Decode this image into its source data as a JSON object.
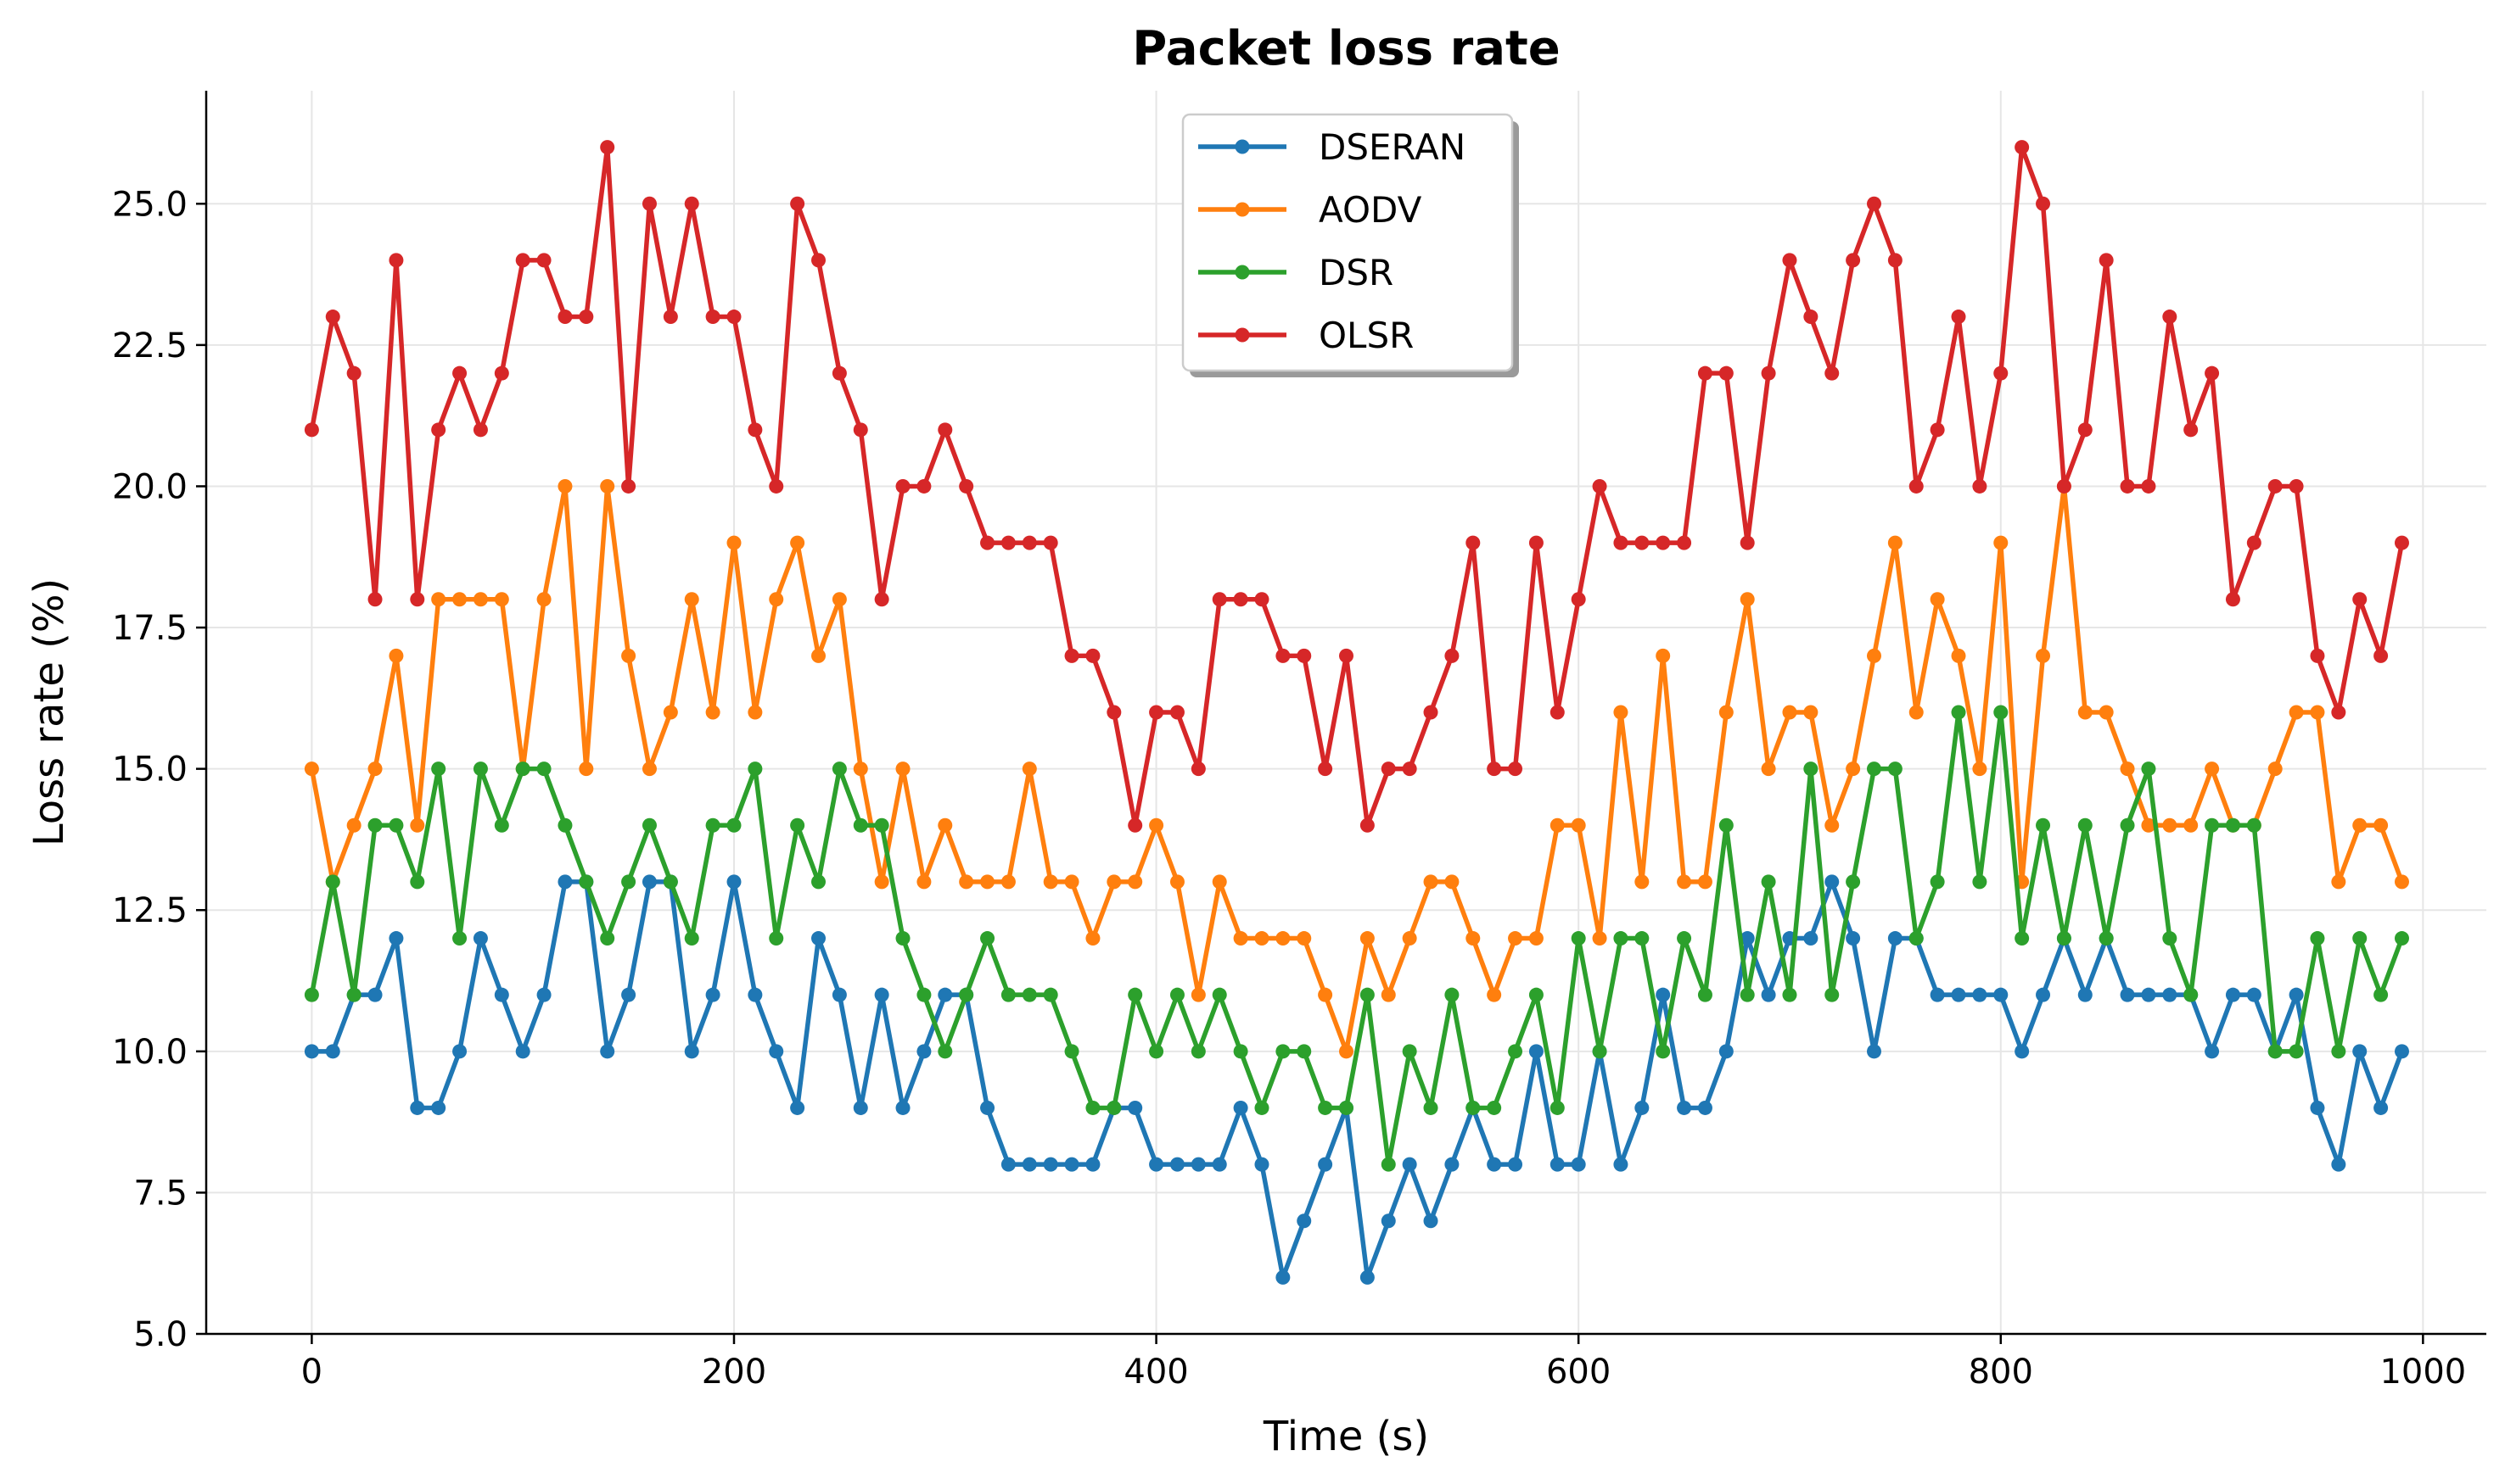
{
  "chart_data": {
    "type": "line",
    "title": "Packet loss rate",
    "xlabel": "Time (s)",
    "ylabel": "Loss rate (%)",
    "xlim": [
      -50,
      1030
    ],
    "ylim": [
      5.0,
      27.0
    ],
    "xticks": [
      0,
      200,
      400,
      600,
      800,
      1000
    ],
    "yticks": [
      5.0,
      7.5,
      10.0,
      12.5,
      15.0,
      17.5,
      20.0,
      22.5,
      25.0
    ],
    "xtick_labels": [
      "0",
      "200",
      "400",
      "600",
      "800",
      "1000"
    ],
    "ytick_labels": [
      "5.0",
      "7.5",
      "10.0",
      "12.5",
      "15.0",
      "17.5",
      "20.0",
      "22.5",
      "25.0"
    ],
    "grid": true,
    "legend_position": "top-center",
    "x": [
      0,
      10,
      20,
      30,
      40,
      50,
      60,
      70,
      80,
      90,
      100,
      110,
      120,
      130,
      140,
      150,
      160,
      170,
      180,
      190,
      200,
      210,
      220,
      230,
      240,
      250,
      260,
      270,
      280,
      290,
      300,
      310,
      320,
      330,
      340,
      350,
      360,
      370,
      380,
      390,
      400,
      410,
      420,
      430,
      440,
      450,
      460,
      470,
      480,
      490,
      500,
      510,
      520,
      530,
      540,
      550,
      560,
      570,
      580,
      590,
      600,
      610,
      620,
      630,
      640,
      650,
      660,
      670,
      680,
      690,
      700,
      710,
      720,
      730,
      740,
      750,
      760,
      770,
      780,
      790,
      800,
      810,
      820,
      830,
      840,
      850,
      860,
      870,
      880,
      890,
      900,
      910,
      920,
      930,
      940,
      950,
      960,
      970,
      980,
      990
    ],
    "series": [
      {
        "name": "DSERAN",
        "color": "#1f77b4",
        "values": [
          10,
          10,
          11,
          11,
          12,
          9,
          9,
          10,
          12,
          11,
          10,
          11,
          13,
          13,
          10,
          11,
          13,
          13,
          10,
          11,
          13,
          11,
          10,
          9,
          12,
          11,
          9,
          11,
          9,
          10,
          11,
          11,
          9,
          8,
          8,
          8,
          8,
          8,
          9,
          9,
          8,
          8,
          8,
          8,
          9,
          8,
          6,
          7,
          8,
          9,
          6,
          7,
          8,
          7,
          8,
          9,
          8,
          8,
          10,
          8,
          8,
          10,
          8,
          9,
          11,
          9,
          9,
          10,
          12,
          11,
          12,
          12,
          13,
          12,
          10,
          12,
          12,
          11,
          11,
          11,
          11,
          10,
          11,
          12,
          11,
          12,
          11,
          11,
          11,
          11,
          10,
          11,
          11,
          10,
          11,
          9,
          8,
          10,
          9,
          10
        ]
      },
      {
        "name": "AODV",
        "color": "#ff7f0e",
        "values": [
          15,
          13,
          14,
          15,
          17,
          14,
          18,
          18,
          18,
          18,
          15,
          18,
          20,
          15,
          20,
          17,
          15,
          16,
          18,
          16,
          19,
          16,
          18,
          19,
          17,
          18,
          15,
          13,
          15,
          13,
          14,
          13,
          13,
          13,
          15,
          13,
          13,
          12,
          13,
          13,
          14,
          13,
          11,
          13,
          12,
          12,
          12,
          12,
          11,
          10,
          12,
          11,
          12,
          13,
          13,
          12,
          11,
          12,
          12,
          14,
          14,
          12,
          16,
          13,
          17,
          13,
          13,
          16,
          18,
          15,
          16,
          16,
          14,
          15,
          17,
          19,
          16,
          18,
          17,
          15,
          19,
          13,
          17,
          20,
          16,
          16,
          15,
          14,
          14,
          14,
          15,
          14,
          14,
          15,
          16,
          16,
          13,
          14,
          14,
          13
        ]
      },
      {
        "name": "DSR",
        "color": "#2ca02c",
        "values": [
          11,
          13,
          11,
          14,
          14,
          13,
          15,
          12,
          15,
          14,
          15,
          15,
          14,
          13,
          12,
          13,
          14,
          13,
          12,
          14,
          14,
          15,
          12,
          14,
          13,
          15,
          14,
          14,
          12,
          11,
          10,
          11,
          12,
          11,
          11,
          11,
          10,
          9,
          9,
          11,
          10,
          11,
          10,
          11,
          10,
          9,
          10,
          10,
          9,
          9,
          11,
          8,
          10,
          9,
          11,
          9,
          9,
          10,
          11,
          9,
          12,
          10,
          12,
          12,
          10,
          12,
          11,
          14,
          11,
          13,
          11,
          15,
          11,
          13,
          15,
          15,
          12,
          13,
          16,
          13,
          16,
          12,
          14,
          12,
          14,
          12,
          14,
          15,
          12,
          11,
          14,
          14,
          14,
          10,
          10,
          12,
          10,
          12,
          11,
          12
        ]
      },
      {
        "name": "OLSR",
        "color": "#d62728",
        "values": [
          21,
          23,
          22,
          18,
          24,
          18,
          21,
          22,
          21,
          22,
          24,
          24,
          23,
          23,
          26,
          20,
          25,
          23,
          25,
          23,
          23,
          21,
          20,
          25,
          24,
          22,
          21,
          18,
          20,
          20,
          21,
          20,
          19,
          19,
          19,
          19,
          17,
          17,
          16,
          14,
          16,
          16,
          15,
          18,
          18,
          18,
          17,
          17,
          15,
          17,
          14,
          15,
          15,
          16,
          17,
          19,
          15,
          15,
          19,
          16,
          18,
          20,
          19,
          19,
          19,
          19,
          22,
          22,
          19,
          22,
          24,
          23,
          22,
          24,
          25,
          24,
          20,
          21,
          23,
          20,
          22,
          26,
          25,
          20,
          21,
          24,
          20,
          20,
          23,
          21,
          22,
          18,
          19,
          20,
          20,
          17,
          16,
          18,
          17,
          19
        ]
      }
    ]
  }
}
